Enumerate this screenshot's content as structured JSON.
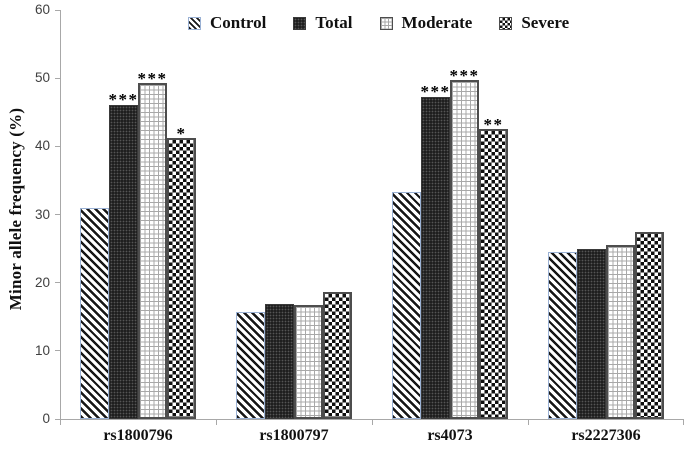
{
  "chart_data": {
    "type": "bar",
    "title": "",
    "ylabel": "Minor allele frequency (%)",
    "xlabel": "",
    "ylim": [
      0,
      60
    ],
    "yticks": [
      0,
      10,
      20,
      30,
      40,
      50,
      60
    ],
    "grid": false,
    "legend_position": "top-center",
    "categories": [
      "rs1800796",
      "rs1800797",
      "rs4073",
      "rs2227306"
    ],
    "series": [
      {
        "name": "Control",
        "pattern": "diagonal-stripes",
        "values": [
          31.0,
          15.7,
          33.3,
          24.5
        ],
        "significance": [
          "",
          "",
          "",
          ""
        ]
      },
      {
        "name": "Total",
        "pattern": "dark-dots",
        "values": [
          46.0,
          16.9,
          47.2,
          25.0
        ],
        "significance": [
          "***",
          "",
          "***",
          ""
        ]
      },
      {
        "name": "Moderate",
        "pattern": "light-grid",
        "values": [
          49.3,
          16.8,
          49.8,
          25.6
        ],
        "significance": [
          "***",
          "",
          "***",
          ""
        ]
      },
      {
        "name": "Severe",
        "pattern": "checkerboard",
        "values": [
          41.3,
          18.6,
          42.6,
          27.5
        ],
        "significance": [
          "*",
          "",
          "**",
          ""
        ]
      }
    ],
    "colors": {
      "control_border": "#9ab1d4",
      "bar_dark": "#1f1f1f",
      "bar_border": "#4d4d4d",
      "axis": "#a8a8a8",
      "tick_text": "#3f3f3f",
      "text": "#111111"
    }
  }
}
